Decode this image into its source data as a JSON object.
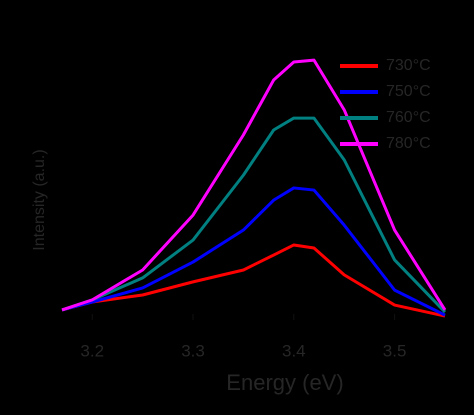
{
  "chart_data": {
    "type": "line",
    "x_label": "Energy (eV)",
    "y_label": "Intensity (a.u.)",
    "x": [
      3.17,
      3.2,
      3.25,
      3.3,
      3.35,
      3.38,
      3.4,
      3.42,
      3.45,
      3.5,
      3.55
    ],
    "series": [
      {
        "name": "730°C",
        "color": "#ff0000",
        "values": [
          3.3,
          5.9,
          8.2,
          12.5,
          16.4,
          21.3,
          24.6,
          23.6,
          14.8,
          4.9,
          1.3
        ]
      },
      {
        "name": "750°C",
        "color": "#0000ff",
        "values": [
          3.3,
          5.9,
          10.5,
          19,
          29.5,
          39.3,
          43.3,
          42.6,
          31.1,
          9.8,
          1.6
        ]
      },
      {
        "name": "760°C",
        "color": "#008080",
        "values": [
          3.3,
          6.6,
          13.8,
          26.2,
          47.5,
          62.3,
          66.2,
          66.2,
          52.5,
          19.7,
          2.6
        ]
      },
      {
        "name": "780°C",
        "color": "#ff00ff",
        "values": [
          3.3,
          6.6,
          16.4,
          34.4,
          60.7,
          78.7,
          84.6,
          85.2,
          68.9,
          29.5,
          3.3
        ]
      }
    ],
    "xlim": [
      3.17,
      3.55
    ],
    "xticks": [
      3.2,
      3.3,
      3.4,
      3.5
    ],
    "ylim": [
      0,
      100
    ],
    "legend": "upper right"
  }
}
